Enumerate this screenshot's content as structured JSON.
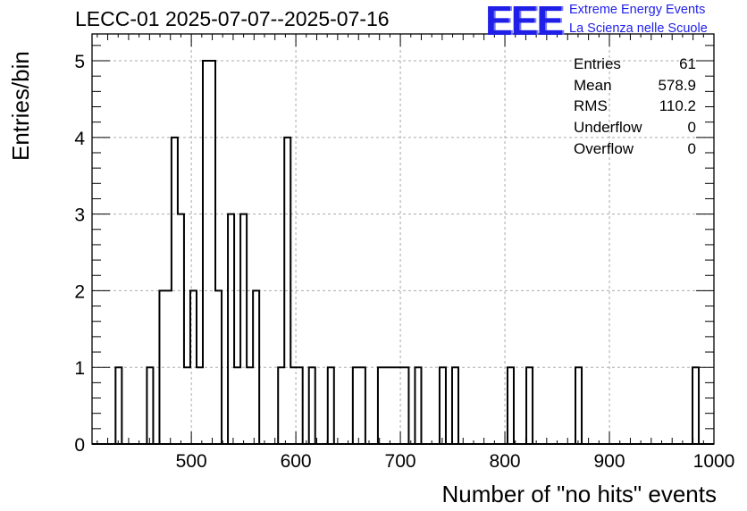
{
  "title": "LECC-01 2025-07-07--2025-07-16",
  "logo": {
    "mark": "EEE",
    "line1": "Extreme Energy Events",
    "line2": "La Scienza nelle Scuole",
    "color": "#1f1fe8"
  },
  "stats": {
    "entries": {
      "label": "Entries",
      "value": "61"
    },
    "mean": {
      "label": "Mean",
      "value": "578.9"
    },
    "rms": {
      "label": "RMS",
      "value": "110.2"
    },
    "underflow": {
      "label": "Underflow",
      "value": "0"
    },
    "overflow": {
      "label": "Overflow",
      "value": "0"
    }
  },
  "chart_data": {
    "type": "bar",
    "histogram": true,
    "xlabel": "Number of \"no hits\" events",
    "ylabel": "Entries/bin",
    "xlim": [
      405,
      1000
    ],
    "ylim": [
      0,
      5.35
    ],
    "bin_width": 5.95,
    "grid": true,
    "xticks": [
      "500",
      "600",
      "700",
      "800",
      "900",
      "1000"
    ],
    "xtick_values": [
      500,
      600,
      700,
      800,
      900,
      1000
    ],
    "yticks": [
      "0",
      "1",
      "2",
      "3",
      "4",
      "5"
    ],
    "ytick_values": [
      0,
      1,
      2,
      3,
      4,
      5
    ],
    "bins": [
      {
        "x0": 427.5,
        "x1": 433.5,
        "count": 1
      },
      {
        "x0": 457.5,
        "x1": 463.5,
        "count": 1
      },
      {
        "x0": 469.5,
        "x1": 481.0,
        "count": 2
      },
      {
        "x0": 481.0,
        "x1": 487.0,
        "count": 4
      },
      {
        "x0": 487.0,
        "x1": 493.0,
        "count": 3
      },
      {
        "x0": 493.0,
        "x1": 499.0,
        "count": 1
      },
      {
        "x0": 499.0,
        "x1": 505.0,
        "count": 2
      },
      {
        "x0": 505.0,
        "x1": 511.0,
        "count": 1
      },
      {
        "x0": 511.0,
        "x1": 523.0,
        "count": 5
      },
      {
        "x0": 523.0,
        "x1": 529.0,
        "count": 2
      },
      {
        "x0": 535.0,
        "x1": 541.0,
        "count": 3
      },
      {
        "x0": 541.0,
        "x1": 547.0,
        "count": 1
      },
      {
        "x0": 547.0,
        "x1": 553.0,
        "count": 3
      },
      {
        "x0": 553.0,
        "x1": 559.0,
        "count": 1
      },
      {
        "x0": 559.0,
        "x1": 565.0,
        "count": 2
      },
      {
        "x0": 583.0,
        "x1": 589.0,
        "count": 1
      },
      {
        "x0": 589.0,
        "x1": 595.0,
        "count": 4
      },
      {
        "x0": 595.0,
        "x1": 606.5,
        "count": 1
      },
      {
        "x0": 612.5,
        "x1": 618.5,
        "count": 1
      },
      {
        "x0": 630.5,
        "x1": 636.5,
        "count": 1
      },
      {
        "x0": 654.5,
        "x1": 666.5,
        "count": 1
      },
      {
        "x0": 678.5,
        "x1": 708.0,
        "count": 1
      },
      {
        "x0": 714.0,
        "x1": 720.0,
        "count": 1
      },
      {
        "x0": 737.5,
        "x1": 743.5,
        "count": 1
      },
      {
        "x0": 749.5,
        "x1": 755.5,
        "count": 1
      },
      {
        "x0": 802.5,
        "x1": 808.5,
        "count": 1
      },
      {
        "x0": 820.5,
        "x1": 826.5,
        "count": 1
      },
      {
        "x0": 867.5,
        "x1": 873.5,
        "count": 1
      },
      {
        "x0": 979.5,
        "x1": 985.5,
        "count": 1
      }
    ]
  }
}
